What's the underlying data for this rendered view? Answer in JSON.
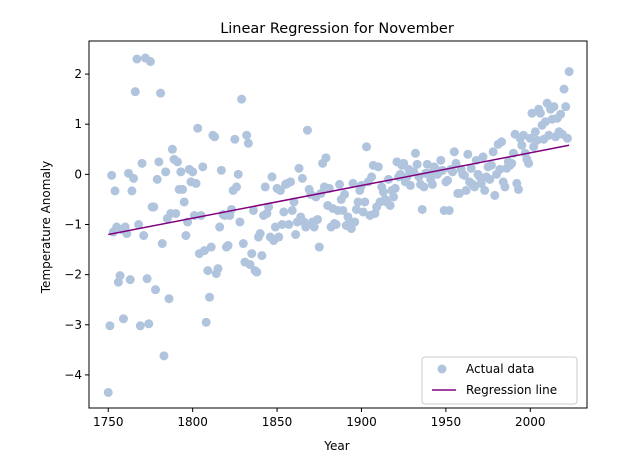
{
  "chart_data": {
    "type": "scatter",
    "title": "Linear Regression for November",
    "xlabel": "Year",
    "ylabel": "Temperature Anomaly",
    "xlim": [
      1738.6,
      2033.6
    ],
    "ylim": [
      -4.66,
      2.66
    ],
    "xticks": [
      1750,
      1800,
      1850,
      1900,
      1950,
      2000
    ],
    "yticks": [
      -4,
      -3,
      -2,
      -1,
      0,
      1,
      2
    ],
    "grid": false,
    "legend": {
      "placement": "bottom-right"
    },
    "series": [
      {
        "name": "Actual data",
        "type": "scatter",
        "color": "#b0c4de",
        "points": [
          [
            1750,
            -4.35
          ],
          [
            1751,
            -3.02
          ],
          [
            1752,
            -0.02
          ],
          [
            1753,
            -1.15
          ],
          [
            1754,
            -0.33
          ],
          [
            1755,
            -1.05
          ],
          [
            1756,
            -2.15
          ],
          [
            1757,
            -2.02
          ],
          [
            1758,
            -1.1
          ],
          [
            1759,
            -2.88
          ],
          [
            1760,
            -1.05
          ],
          [
            1761,
            -1.18
          ],
          [
            1762,
            0.02
          ],
          [
            1763,
            -2.1
          ],
          [
            1764,
            -0.33
          ],
          [
            1765,
            -0.08
          ],
          [
            1766,
            1.65
          ],
          [
            1767,
            2.3
          ],
          [
            1768,
            -1.0
          ],
          [
            1769,
            -3.02
          ],
          [
            1770,
            0.22
          ],
          [
            1771,
            -1.22
          ],
          [
            1772,
            2.32
          ],
          [
            1773,
            -2.08
          ],
          [
            1774,
            -2.98
          ],
          [
            1775,
            2.25
          ],
          [
            1776,
            -0.65
          ],
          [
            1777,
            -0.65
          ],
          [
            1778,
            -2.3
          ],
          [
            1779,
            -0.1
          ],
          [
            1780,
            0.25
          ],
          [
            1781,
            1.62
          ],
          [
            1782,
            -1.38
          ],
          [
            1783,
            -3.62
          ],
          [
            1784,
            0.05
          ],
          [
            1785,
            -0.88
          ],
          [
            1786,
            -2.48
          ],
          [
            1787,
            -0.78
          ],
          [
            1788,
            0.5
          ],
          [
            1789,
            0.3
          ],
          [
            1790,
            -0.78
          ],
          [
            1791,
            0.25
          ],
          [
            1792,
            -0.3
          ],
          [
            1793,
            0.05
          ],
          [
            1794,
            -0.3
          ],
          [
            1795,
            -0.55
          ],
          [
            1796,
            -1.22
          ],
          [
            1797,
            -0.95
          ],
          [
            1798,
            0.1
          ],
          [
            1799,
            -0.15
          ],
          [
            1800,
            0.05
          ],
          [
            1801,
            -0.82
          ],
          [
            1802,
            -0.18
          ],
          [
            1803,
            0.92
          ],
          [
            1804,
            -1.58
          ],
          [
            1805,
            -0.82
          ],
          [
            1806,
            0.15
          ],
          [
            1807,
            -1.52
          ],
          [
            1808,
            -2.95
          ],
          [
            1809,
            -1.92
          ],
          [
            1810,
            -2.45
          ],
          [
            1811,
            -1.45
          ],
          [
            1812,
            0.78
          ],
          [
            1813,
            0.75
          ],
          [
            1814,
            -1.98
          ],
          [
            1815,
            -1.88
          ],
          [
            1816,
            -1.05
          ],
          [
            1817,
            0.08
          ],
          [
            1818,
            -0.8
          ],
          [
            1819,
            -0.82
          ],
          [
            1820,
            -1.45
          ],
          [
            1821,
            -1.42
          ],
          [
            1822,
            -0.82
          ],
          [
            1823,
            -0.7
          ],
          [
            1824,
            -0.32
          ],
          [
            1825,
            0.7
          ],
          [
            1826,
            -0.25
          ],
          [
            1827,
            0.0
          ],
          [
            1828,
            -0.95
          ],
          [
            1829,
            1.5
          ],
          [
            1830,
            -1.38
          ],
          [
            1831,
            -1.75
          ],
          [
            1832,
            0.78
          ],
          [
            1833,
            0.62
          ],
          [
            1834,
            -1.8
          ],
          [
            1835,
            -1.58
          ],
          [
            1836,
            -0.72
          ],
          [
            1837,
            -1.92
          ],
          [
            1838,
            -1.95
          ],
          [
            1839,
            -1.25
          ],
          [
            1840,
            -1.18
          ],
          [
            1841,
            -1.62
          ],
          [
            1842,
            -0.82
          ],
          [
            1843,
            -0.25
          ],
          [
            1844,
            -0.78
          ],
          [
            1845,
            -0.65
          ],
          [
            1846,
            -1.25
          ],
          [
            1847,
            -0.05
          ],
          [
            1848,
            -1.32
          ],
          [
            1849,
            -1.05
          ],
          [
            1850,
            -0.28
          ],
          [
            1851,
            -1.25
          ],
          [
            1852,
            -0.32
          ],
          [
            1853,
            -1.0
          ],
          [
            1854,
            -0.75
          ],
          [
            1855,
            -0.2
          ],
          [
            1856,
            -0.18
          ],
          [
            1857,
            -1.0
          ],
          [
            1858,
            -0.15
          ],
          [
            1859,
            -0.72
          ],
          [
            1860,
            -0.55
          ],
          [
            1861,
            -1.2
          ],
          [
            1862,
            -0.95
          ],
          [
            1863,
            0.12
          ],
          [
            1864,
            -0.85
          ],
          [
            1865,
            -0.08
          ],
          [
            1866,
            -0.95
          ],
          [
            1867,
            -1.05
          ],
          [
            1868,
            0.88
          ],
          [
            1869,
            -0.3
          ],
          [
            1870,
            -0.4
          ],
          [
            1871,
            -0.95
          ],
          [
            1872,
            -1.05
          ],
          [
            1873,
            -0.45
          ],
          [
            1874,
            -0.9
          ],
          [
            1875,
            -1.45
          ],
          [
            1876,
            -0.38
          ],
          [
            1877,
            0.22
          ],
          [
            1878,
            -0.25
          ],
          [
            1879,
            0.33
          ],
          [
            1880,
            -0.62
          ],
          [
            1881,
            -0.28
          ],
          [
            1882,
            -1.05
          ],
          [
            1883,
            -0.68
          ],
          [
            1884,
            -0.98
          ],
          [
            1885,
            -1.0
          ],
          [
            1886,
            -0.72
          ],
          [
            1887,
            -0.2
          ],
          [
            1888,
            -0.5
          ],
          [
            1889,
            -0.72
          ],
          [
            1890,
            -0.4
          ],
          [
            1891,
            -1.02
          ],
          [
            1892,
            -0.85
          ],
          [
            1893,
            -0.95
          ],
          [
            1894,
            -1.08
          ],
          [
            1895,
            -0.18
          ],
          [
            1896,
            -0.95
          ],
          [
            1897,
            -0.7
          ],
          [
            1898,
            -0.55
          ],
          [
            1899,
            -0.32
          ],
          [
            1900,
            -0.22
          ],
          [
            1901,
            -0.75
          ],
          [
            1902,
            -0.55
          ],
          [
            1903,
            0.55
          ],
          [
            1904,
            -0.15
          ],
          [
            1905,
            -0.82
          ],
          [
            1906,
            -0.05
          ],
          [
            1907,
            0.18
          ],
          [
            1908,
            -0.78
          ],
          [
            1909,
            -0.65
          ],
          [
            1910,
            0.15
          ],
          [
            1911,
            -0.55
          ],
          [
            1912,
            -0.25
          ],
          [
            1913,
            -0.35
          ],
          [
            1914,
            -0.5
          ],
          [
            1915,
            -0.55
          ],
          [
            1916,
            -0.1
          ],
          [
            1917,
            -0.62
          ],
          [
            1918,
            -0.32
          ],
          [
            1919,
            -0.45
          ],
          [
            1920,
            -0.28
          ],
          [
            1921,
            0.25
          ],
          [
            1922,
            -0.05
          ],
          [
            1923,
            0.0
          ],
          [
            1924,
            0.18
          ],
          [
            1925,
            0.22
          ],
          [
            1926,
            -0.15
          ],
          [
            1927,
            -0.05
          ],
          [
            1928,
            0.1
          ],
          [
            1929,
            -0.22
          ],
          [
            1930,
            0.05
          ],
          [
            1931,
            0.05
          ],
          [
            1932,
            0.42
          ],
          [
            1933,
            0.2
          ],
          [
            1934,
            -0.05
          ],
          [
            1935,
            -0.2
          ],
          [
            1936,
            -0.7
          ],
          [
            1937,
            -0.25
          ],
          [
            1938,
            0.02
          ],
          [
            1939,
            0.2
          ],
          [
            1940,
            0.02
          ],
          [
            1941,
            -0.1
          ],
          [
            1942,
            -0.2
          ],
          [
            1943,
            0.15
          ],
          [
            1944,
            0.1
          ],
          [
            1945,
            0.0
          ],
          [
            1946,
            0.05
          ],
          [
            1947,
            0.28
          ],
          [
            1948,
            0.08
          ],
          [
            1949,
            -0.72
          ],
          [
            1950,
            -0.15
          ],
          [
            1951,
            -0.12
          ],
          [
            1952,
            -0.72
          ],
          [
            1953,
            0.1
          ],
          [
            1954,
            0.05
          ],
          [
            1955,
            0.45
          ],
          [
            1956,
            0.22
          ],
          [
            1957,
            -0.38
          ],
          [
            1958,
            -0.38
          ],
          [
            1959,
            0.1
          ],
          [
            1960,
            0.0
          ],
          [
            1961,
            -0.02
          ],
          [
            1962,
            -0.32
          ],
          [
            1963,
            0.4
          ],
          [
            1964,
            -0.15
          ],
          [
            1965,
            0.12
          ],
          [
            1966,
            -0.2
          ],
          [
            1967,
            -0.25
          ],
          [
            1968,
            0.28
          ],
          [
            1969,
            0.0
          ],
          [
            1970,
            -0.05
          ],
          [
            1971,
            -0.18
          ],
          [
            1972,
            0.35
          ],
          [
            1973,
            -0.32
          ],
          [
            1974,
            -0.05
          ],
          [
            1975,
            0.15
          ],
          [
            1976,
            -0.1
          ],
          [
            1977,
            0.18
          ],
          [
            1978,
            0.45
          ],
          [
            1979,
            -0.42
          ],
          [
            1980,
            0.0
          ],
          [
            1981,
            0.6
          ],
          [
            1982,
            0.1
          ],
          [
            1983,
            0.65
          ],
          [
            1984,
            -0.15
          ],
          [
            1985,
            -0.25
          ],
          [
            1986,
            0.12
          ],
          [
            1987,
            0.25
          ],
          [
            1988,
            0.18
          ],
          [
            1989,
            0.22
          ],
          [
            1990,
            0.42
          ],
          [
            1991,
            0.8
          ],
          [
            1992,
            -0.18
          ],
          [
            1993,
            -0.3
          ],
          [
            1994,
            0.72
          ],
          [
            1995,
            0.58
          ],
          [
            1996,
            0.78
          ],
          [
            1997,
            0.42
          ],
          [
            1998,
            0.3
          ],
          [
            1999,
            0.22
          ],
          [
            2000,
            0.72
          ],
          [
            2001,
            1.22
          ],
          [
            2002,
            0.55
          ],
          [
            2003,
            0.85
          ],
          [
            2004,
            0.68
          ],
          [
            2005,
            1.3
          ],
          [
            2006,
            1.22
          ],
          [
            2007,
            0.98
          ],
          [
            2008,
            0.7
          ],
          [
            2009,
            1.05
          ],
          [
            2010,
            1.42
          ],
          [
            2011,
            0.78
          ],
          [
            2012,
            1.3
          ],
          [
            2013,
            1.1
          ],
          [
            2014,
            1.35
          ],
          [
            2015,
            0.75
          ],
          [
            2016,
            1.12
          ],
          [
            2017,
            0.85
          ],
          [
            2018,
            1.2
          ],
          [
            2019,
            0.8
          ],
          [
            2020,
            1.7
          ],
          [
            2021,
            1.35
          ],
          [
            2022,
            0.72
          ],
          [
            2023,
            2.05
          ]
        ]
      },
      {
        "name": "Regression line",
        "type": "line",
        "color": "#800080",
        "points": [
          [
            1750,
            -1.2
          ],
          [
            2023,
            0.58
          ]
        ]
      }
    ]
  }
}
